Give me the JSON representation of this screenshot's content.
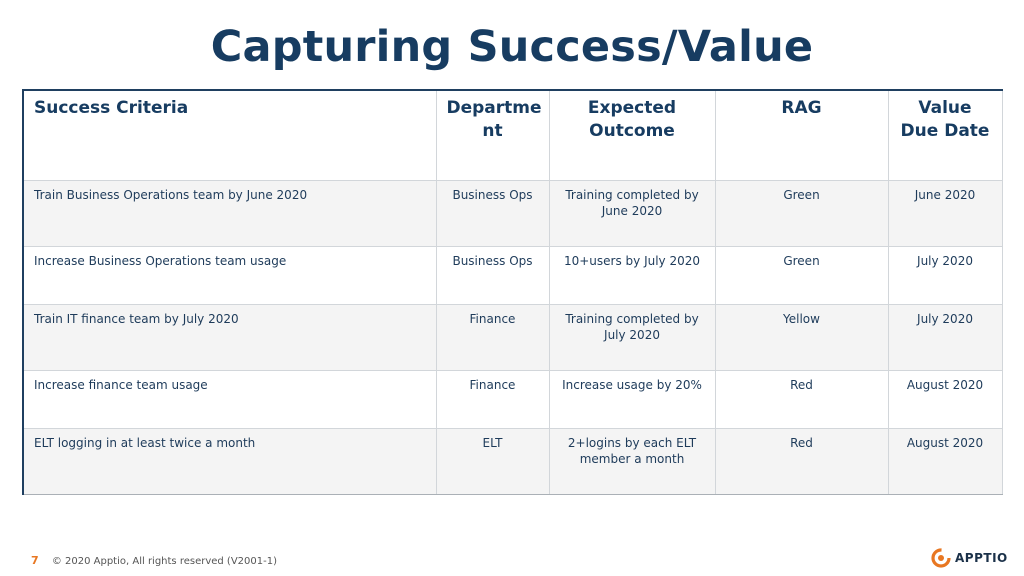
{
  "title": "Capturing Success/Value",
  "table": {
    "headers": [
      "Success Criteria",
      "Departme\nnt",
      "Expected Outcome",
      "RAG",
      "Value Due Date"
    ],
    "rows": [
      [
        "Train Business Operations team by June 2020",
        "Business Ops",
        "Training completed by June 2020",
        "Green",
        "June 2020"
      ],
      [
        "Increase Business Operations team usage",
        "Business Ops",
        "10+users by July 2020",
        "Green",
        "July 2020"
      ],
      [
        "Train IT finance team by July 2020",
        "Finance",
        "Training completed by July 2020",
        "Yellow",
        "July 2020"
      ],
      [
        "Increase finance team usage",
        "Finance",
        "Increase usage by 20%",
        "Red",
        "August 2020"
      ],
      [
        "ELT logging in at least twice a month",
        "ELT",
        "2+logins by each ELT member a month",
        "Red",
        "August 2020"
      ]
    ]
  },
  "footer": {
    "page_number": "7",
    "copyright": "© 2020 Apptio, All rights reserved (V2001-1)"
  },
  "logo": {
    "text": "APPTIO",
    "icon": "apptio-logo-icon",
    "color": "#e87722"
  },
  "colors": {
    "title": "#173c61",
    "accent": "#e87722"
  }
}
